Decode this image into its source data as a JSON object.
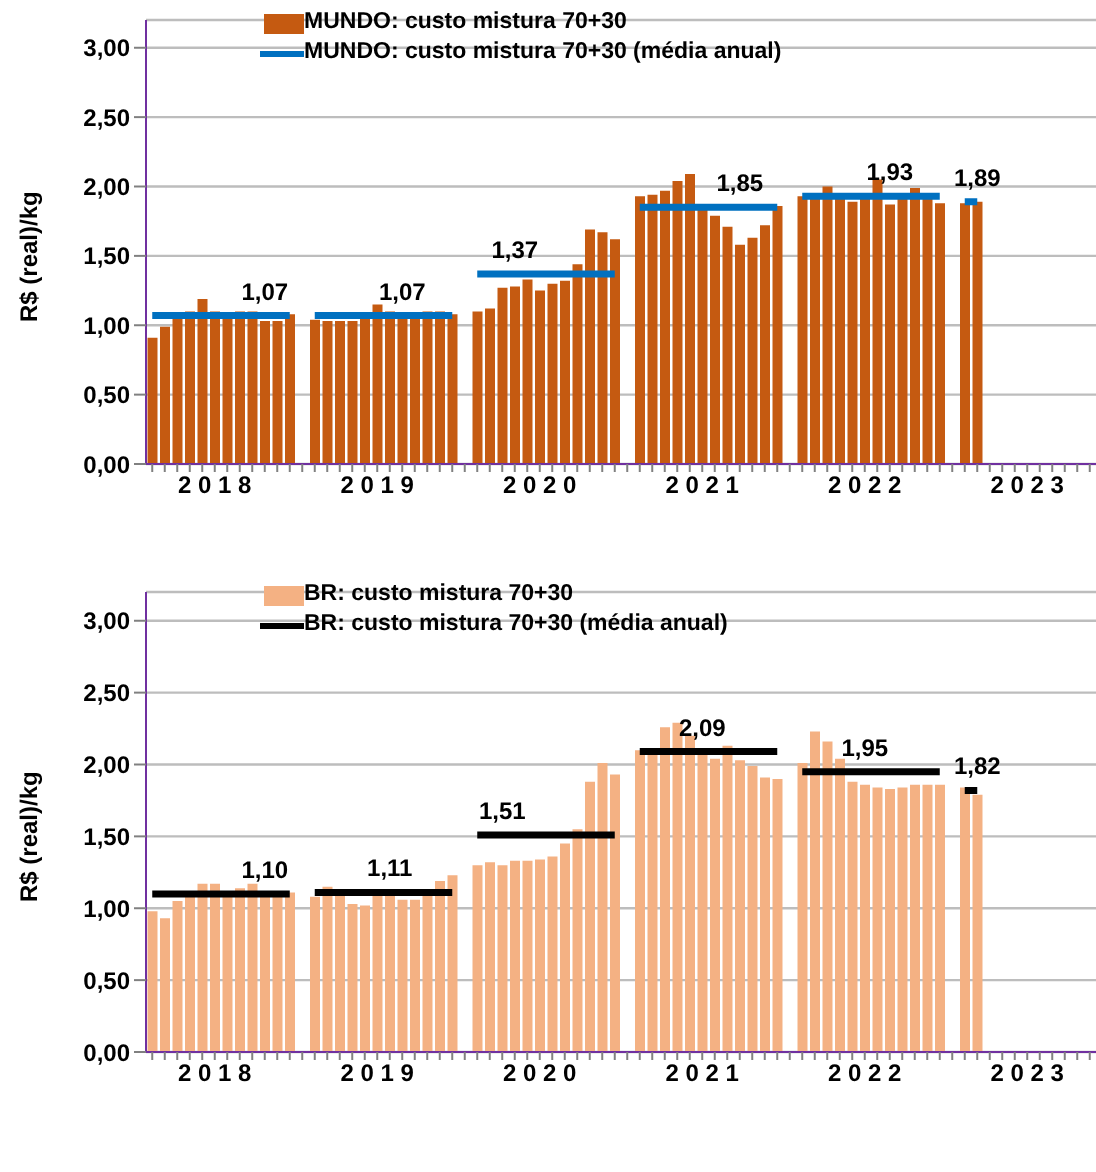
{
  "chart_data": [
    {
      "type": "bar",
      "ylabel": "R$ (real)/kg",
      "categories": [
        null,
        null,
        null,
        null,
        null,
        "2 0 1 8",
        null,
        null,
        null,
        null,
        null,
        null,
        null,
        null,
        null,
        null,
        null,
        null,
        "2 0 1 9",
        null,
        null,
        null,
        null,
        null,
        null,
        null,
        null,
        null,
        null,
        null,
        null,
        "2 0 2 0",
        null,
        null,
        null,
        null,
        null,
        null,
        null,
        null,
        null,
        null,
        null,
        null,
        "2 0 2 1",
        null,
        null,
        null,
        null,
        null,
        null,
        null,
        null,
        null,
        null,
        null,
        null,
        "2 0 2 2",
        null,
        null,
        null,
        null,
        null,
        null,
        null,
        null,
        null,
        null,
        null,
        null,
        "2 0 2 3",
        null,
        null,
        null,
        null,
        null
      ],
      "series": [
        {
          "name": "MUNDO: custo mistura 70+30",
          "color": "#c55a11",
          "values": [
            0.91,
            0.99,
            1.05,
            1.1,
            1.19,
            1.1,
            1.06,
            1.1,
            1.1,
            1.03,
            1.03,
            1.08,
            null,
            1.04,
            1.03,
            1.03,
            1.03,
            1.06,
            1.15,
            1.1,
            1.08,
            1.08,
            1.1,
            1.1,
            1.08,
            null,
            1.1,
            1.12,
            1.27,
            1.28,
            1.33,
            1.25,
            1.3,
            1.32,
            1.44,
            1.69,
            1.67,
            1.62,
            null,
            1.93,
            1.94,
            1.97,
            2.04,
            2.09,
            1.83,
            1.79,
            1.71,
            1.58,
            1.63,
            1.72,
            1.86,
            null,
            1.93,
            1.93,
            2.0,
            1.91,
            1.89,
            1.91,
            2.05,
            1.87,
            1.91,
            1.99,
            1.91,
            1.88,
            null,
            1.88,
            1.89,
            null,
            null,
            null,
            null,
            null,
            null,
            null,
            null,
            null
          ]
        },
        {
          "name": "MUNDO: custo mistura 70+30 (média anual)",
          "type": "line",
          "color": "#0070c0",
          "values": [
            1.07,
            1.07,
            1.07,
            1.07,
            1.07,
            1.07,
            1.07,
            1.07,
            1.07,
            1.07,
            1.07,
            1.07,
            null,
            1.07,
            1.07,
            1.07,
            1.07,
            1.07,
            1.07,
            1.07,
            1.07,
            1.07,
            1.07,
            1.07,
            1.07,
            null,
            1.37,
            1.37,
            1.37,
            1.37,
            1.37,
            1.37,
            1.37,
            1.37,
            1.37,
            1.37,
            1.37,
            1.37,
            null,
            1.85,
            1.85,
            1.85,
            1.85,
            1.85,
            1.85,
            1.85,
            1.85,
            1.85,
            1.85,
            1.85,
            1.85,
            null,
            1.93,
            1.93,
            1.93,
            1.93,
            1.93,
            1.93,
            1.93,
            1.93,
            1.93,
            1.93,
            1.93,
            1.93,
            null,
            1.89,
            1.89,
            null,
            null,
            null,
            null,
            null,
            null,
            null,
            null,
            null
          ],
          "value_labels": [
            null,
            null,
            null,
            null,
            null,
            null,
            null,
            null,
            null,
            "1,07",
            null,
            null,
            null,
            null,
            null,
            null,
            null,
            null,
            null,
            null,
            "1,07",
            null,
            null,
            null,
            null,
            null,
            null,
            null,
            null,
            "1,37",
            null,
            null,
            null,
            null,
            null,
            null,
            null,
            null,
            null,
            null,
            null,
            null,
            null,
            null,
            null,
            null,
            null,
            "1,85",
            null,
            null,
            null,
            null,
            null,
            null,
            null,
            null,
            null,
            null,
            null,
            "1,93",
            null,
            null,
            null,
            null,
            null,
            null,
            "1,89",
            null,
            null,
            null,
            null,
            null,
            null,
            null,
            null,
            null
          ]
        }
      ],
      "ylim": [
        0,
        3.2
      ],
      "yticks": [
        {
          "value": 0,
          "label": "0,00"
        },
        {
          "value": 0.5,
          "label": "0,50"
        },
        {
          "value": 1,
          "label": "1,00"
        },
        {
          "value": 1.5,
          "label": "1,50"
        },
        {
          "value": 2,
          "label": "2,00"
        },
        {
          "value": 2.5,
          "label": "2,50"
        },
        {
          "value": 3,
          "label": "3,00"
        }
      ],
      "grid": "y",
      "legend": "top"
    },
    {
      "type": "bar",
      "ylabel": "R$ (real)/kg",
      "categories": [
        null,
        null,
        null,
        null,
        null,
        "2 0 1 8",
        null,
        null,
        null,
        null,
        null,
        null,
        null,
        null,
        null,
        null,
        null,
        null,
        "2 0 1 9",
        null,
        null,
        null,
        null,
        null,
        null,
        null,
        null,
        null,
        null,
        null,
        null,
        "2 0 2 0",
        null,
        null,
        null,
        null,
        null,
        null,
        null,
        null,
        null,
        null,
        null,
        null,
        "2 0 2 1",
        null,
        null,
        null,
        null,
        null,
        null,
        null,
        null,
        null,
        null,
        null,
        null,
        "2 0 2 2",
        null,
        null,
        null,
        null,
        null,
        null,
        null,
        null,
        null,
        null,
        null,
        null,
        "2 0 2 3",
        null,
        null,
        null,
        null,
        null
      ],
      "series": [
        {
          "name": "BR: custo mistura 70+30",
          "color": "#f4b183",
          "values": [
            0.98,
            0.93,
            1.05,
            1.09,
            1.17,
            1.17,
            1.1,
            1.14,
            1.17,
            1.12,
            1.1,
            1.11,
            null,
            1.08,
            1.15,
            1.09,
            1.03,
            1.02,
            1.09,
            1.09,
            1.06,
            1.06,
            1.09,
            1.19,
            1.23,
            null,
            1.3,
            1.32,
            1.3,
            1.33,
            1.33,
            1.34,
            1.36,
            1.45,
            1.55,
            1.88,
            2.01,
            1.93,
            null,
            2.1,
            2.1,
            2.26,
            2.29,
            2.2,
            2.08,
            2.04,
            2.13,
            2.03,
            1.99,
            1.91,
            1.9,
            null,
            2.01,
            2.23,
            2.16,
            2.04,
            1.88,
            1.86,
            1.84,
            1.83,
            1.84,
            1.86,
            1.86,
            1.86,
            null,
            1.84,
            1.79,
            null,
            null,
            null,
            null,
            null,
            null,
            null,
            null,
            null
          ]
        },
        {
          "name": "BR: custo mistura 70+30 (média anual)",
          "type": "line",
          "color": "#000000",
          "values": [
            1.1,
            1.1,
            1.1,
            1.1,
            1.1,
            1.1,
            1.1,
            1.1,
            1.1,
            1.1,
            1.1,
            1.1,
            null,
            1.11,
            1.11,
            1.11,
            1.11,
            1.11,
            1.11,
            1.11,
            1.11,
            1.11,
            1.11,
            1.11,
            1.11,
            null,
            1.51,
            1.51,
            1.51,
            1.51,
            1.51,
            1.51,
            1.51,
            1.51,
            1.51,
            1.51,
            1.51,
            1.51,
            null,
            2.09,
            2.09,
            2.09,
            2.09,
            2.09,
            2.09,
            2.09,
            2.09,
            2.09,
            2.09,
            2.09,
            2.09,
            null,
            1.95,
            1.95,
            1.95,
            1.95,
            1.95,
            1.95,
            1.95,
            1.95,
            1.95,
            1.95,
            1.95,
            1.95,
            null,
            1.82,
            1.82,
            null,
            null,
            null,
            null,
            null,
            null,
            null,
            null,
            null
          ],
          "value_labels": [
            null,
            null,
            null,
            null,
            null,
            null,
            null,
            null,
            null,
            "1,10",
            null,
            null,
            null,
            null,
            null,
            null,
            null,
            null,
            null,
            "1,11",
            null,
            null,
            null,
            null,
            null,
            null,
            null,
            null,
            "1,51",
            null,
            null,
            null,
            null,
            null,
            null,
            null,
            null,
            null,
            null,
            null,
            null,
            null,
            null,
            null,
            "2,09",
            null,
            null,
            null,
            null,
            null,
            null,
            null,
            null,
            null,
            null,
            null,
            null,
            "1,95",
            null,
            null,
            null,
            null,
            null,
            null,
            null,
            null,
            "1,82",
            null,
            null,
            null,
            null,
            null,
            null,
            null,
            null,
            null
          ]
        }
      ],
      "ylim": [
        0,
        3.2
      ],
      "yticks": [
        {
          "value": 0,
          "label": "0,00"
        },
        {
          "value": 0.5,
          "label": "0,50"
        },
        {
          "value": 1,
          "label": "1,00"
        },
        {
          "value": 1.5,
          "label": "1,50"
        },
        {
          "value": 2,
          "label": "2,00"
        },
        {
          "value": 2.5,
          "label": "2,50"
        },
        {
          "value": 3,
          "label": "3,00"
        }
      ],
      "grid": "y",
      "legend": "top"
    }
  ]
}
